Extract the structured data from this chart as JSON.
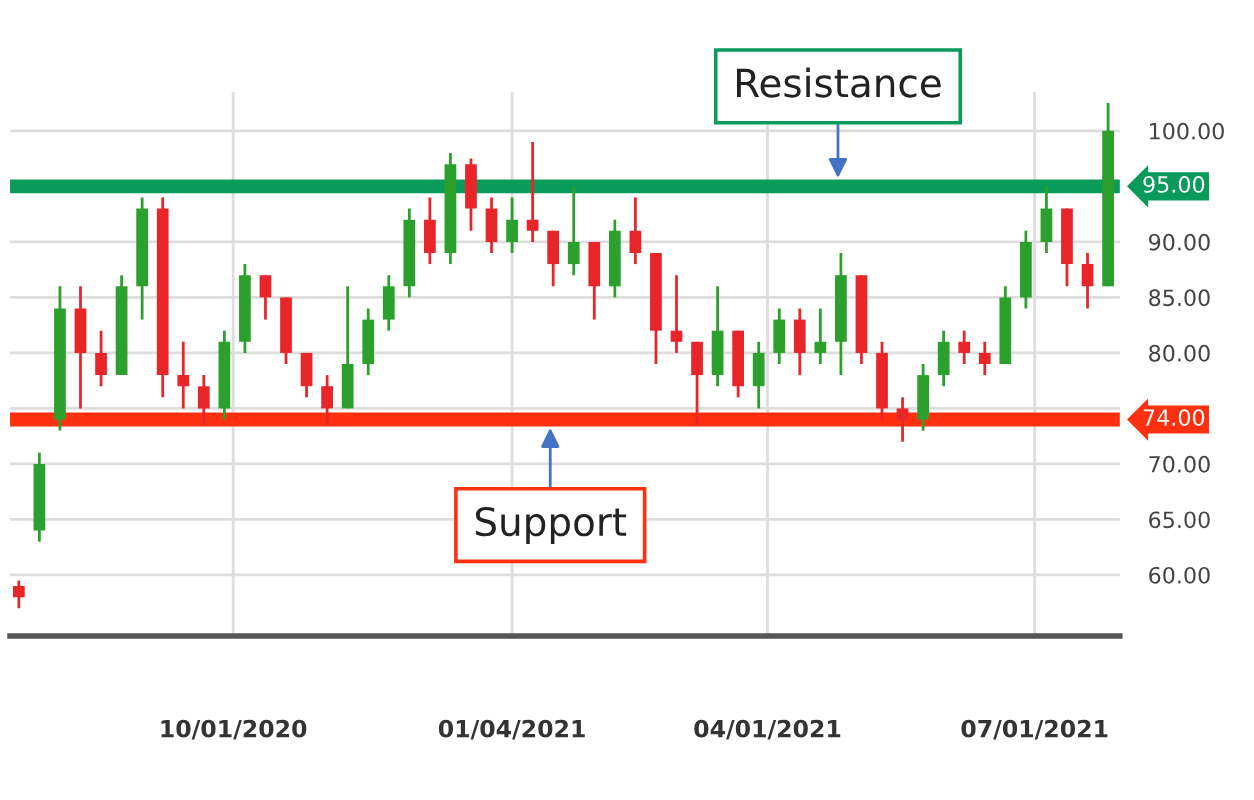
{
  "chart_data": {
    "type": "candlestick",
    "x": [
      "2020-07-20",
      "2020-07-27",
      "2020-08-03",
      "2020-08-10",
      "2020-08-17",
      "2020-08-24",
      "2020-08-31",
      "2020-09-07",
      "2020-09-14",
      "2020-09-21",
      "2020-09-28",
      "2020-10-05",
      "2020-10-12",
      "2020-10-19",
      "2020-10-26",
      "2020-11-02",
      "2020-11-09",
      "2020-11-16",
      "2020-11-23",
      "2020-11-30",
      "2020-12-07",
      "2020-12-14",
      "2020-12-21",
      "2020-12-28",
      "2021-01-04",
      "2021-01-11",
      "2021-01-18",
      "2021-01-25",
      "2021-02-01",
      "2021-02-08",
      "2021-02-15",
      "2021-02-22",
      "2021-03-01",
      "2021-03-08",
      "2021-03-15",
      "2021-03-22",
      "2021-03-29",
      "2021-04-05",
      "2021-04-12",
      "2021-04-19",
      "2021-04-26",
      "2021-05-03",
      "2021-05-10",
      "2021-05-17",
      "2021-05-24",
      "2021-05-31",
      "2021-06-07",
      "2021-06-14",
      "2021-06-21",
      "2021-06-28",
      "2021-07-05",
      "2021-07-12",
      "2021-07-19",
      "2021-07-26"
    ],
    "ohlc": [
      [
        59,
        59.5,
        57,
        58
      ],
      [
        64,
        71,
        63,
        70
      ],
      [
        74,
        86,
        73,
        84
      ],
      [
        84,
        86,
        75,
        80
      ],
      [
        80,
        82,
        77,
        78
      ],
      [
        78,
        87,
        78,
        86
      ],
      [
        86,
        94,
        83,
        93
      ],
      [
        93,
        94,
        76,
        78
      ],
      [
        78,
        81,
        75,
        77
      ],
      [
        77,
        78,
        73.5,
        75
      ],
      [
        75,
        82,
        74,
        81
      ],
      [
        81,
        88,
        80,
        87
      ],
      [
        87,
        87,
        83,
        85
      ],
      [
        85,
        85,
        79,
        80
      ],
      [
        80,
        80,
        76,
        77
      ],
      [
        77,
        78,
        73.5,
        75
      ],
      [
        75,
        86,
        75,
        79
      ],
      [
        79,
        84,
        78,
        83
      ],
      [
        83,
        87,
        82,
        86
      ],
      [
        86,
        93,
        85,
        92
      ],
      [
        92,
        94,
        88,
        89
      ],
      [
        89,
        98,
        88,
        97
      ],
      [
        97,
        97.5,
        91,
        93
      ],
      [
        93,
        94,
        89,
        90
      ],
      [
        90,
        94,
        89,
        92
      ],
      [
        92,
        99,
        90,
        91
      ],
      [
        91,
        91,
        86,
        88
      ],
      [
        88,
        95,
        87,
        90
      ],
      [
        90,
        90,
        83,
        86
      ],
      [
        86,
        92,
        85,
        91
      ],
      [
        91,
        94,
        88,
        89
      ],
      [
        89,
        89,
        79,
        82
      ],
      [
        82,
        87,
        80,
        81
      ],
      [
        81,
        81,
        73.5,
        78
      ],
      [
        78,
        86,
        77,
        82
      ],
      [
        82,
        82,
        76,
        77
      ],
      [
        77,
        81,
        75,
        80
      ],
      [
        80,
        84,
        79,
        83
      ],
      [
        83,
        84,
        78,
        80
      ],
      [
        80,
        84,
        79,
        81
      ],
      [
        81,
        89,
        78,
        87
      ],
      [
        87,
        87,
        79,
        80
      ],
      [
        80,
        81,
        74,
        75
      ],
      [
        75,
        76,
        72,
        74
      ],
      [
        74,
        79,
        73,
        78
      ],
      [
        78,
        82,
        77,
        81
      ],
      [
        81,
        82,
        79,
        80
      ],
      [
        80,
        81,
        78,
        79
      ],
      [
        79,
        86,
        79,
        85
      ],
      [
        85,
        91,
        84,
        90
      ],
      [
        90,
        95,
        89,
        93
      ],
      [
        93,
        93,
        86,
        88
      ],
      [
        88,
        89,
        84,
        86
      ],
      [
        86,
        102.5,
        86,
        100
      ]
    ],
    "colors": [
      "#e8262a",
      "#2ca02c",
      "#2ca02c",
      "#e8262a",
      "#e8262a",
      "#2ca02c",
      "#2ca02c",
      "#e8262a",
      "#e8262a",
      "#e8262a",
      "#2ca02c",
      "#2ca02c",
      "#e8262a",
      "#e8262a",
      "#e8262a",
      "#e8262a",
      "#2ca02c",
      "#2ca02c",
      "#2ca02c",
      "#2ca02c",
      "#e8262a",
      "#2ca02c",
      "#e8262a",
      "#e8262a",
      "#2ca02c",
      "#e8262a",
      "#e8262a",
      "#2ca02c",
      "#e8262a",
      "#2ca02c",
      "#e8262a",
      "#e8262a",
      "#e8262a",
      "#e8262a",
      "#2ca02c",
      "#e8262a",
      "#2ca02c",
      "#2ca02c",
      "#e8262a",
      "#2ca02c",
      "#2ca02c",
      "#e8262a",
      "#e8262a",
      "#e8262a",
      "#2ca02c",
      "#2ca02c",
      "#e8262a",
      "#e8262a",
      "#2ca02c",
      "#2ca02c",
      "#2ca02c",
      "#e8262a",
      "#e8262a",
      "#2ca02c"
    ],
    "xlim": [
      "2020-07-17",
      "2021-07-30"
    ],
    "xticks": [
      {
        "value": "2020-10-01",
        "label": "10/01/2020"
      },
      {
        "value": "2021-01-04",
        "label": "01/04/2021"
      },
      {
        "value": "2021-04-01",
        "label": "04/01/2021"
      },
      {
        "value": "2021-07-01",
        "label": "07/01/2021"
      }
    ],
    "ylim": [
      54.5,
      103.5
    ],
    "yticks": [
      {
        "value": 60,
        "label": "60.00"
      },
      {
        "value": 65,
        "label": "65.00"
      },
      {
        "value": 70,
        "label": "70.00"
      },
      {
        "value": 75,
        "label": null
      },
      {
        "value": 80,
        "label": "80.00"
      },
      {
        "value": 85,
        "label": "85.00"
      },
      {
        "value": 90,
        "label": "90.00"
      },
      {
        "value": 95,
        "label": null
      },
      {
        "value": 100,
        "label": "100.00"
      }
    ],
    "grid": true,
    "ref_lines": [
      {
        "axis": "y",
        "value": 95,
        "label": "95.00",
        "color": "#0a9b5a"
      },
      {
        "axis": "y",
        "value": 74,
        "label": "74.00",
        "color": "#ff3010"
      }
    ],
    "annotations": [
      {
        "text": "Resistance",
        "x": "2021-04-25",
        "y": 95
      },
      {
        "text": "Support",
        "x": "2021-01-17",
        "y": 74
      }
    ]
  }
}
